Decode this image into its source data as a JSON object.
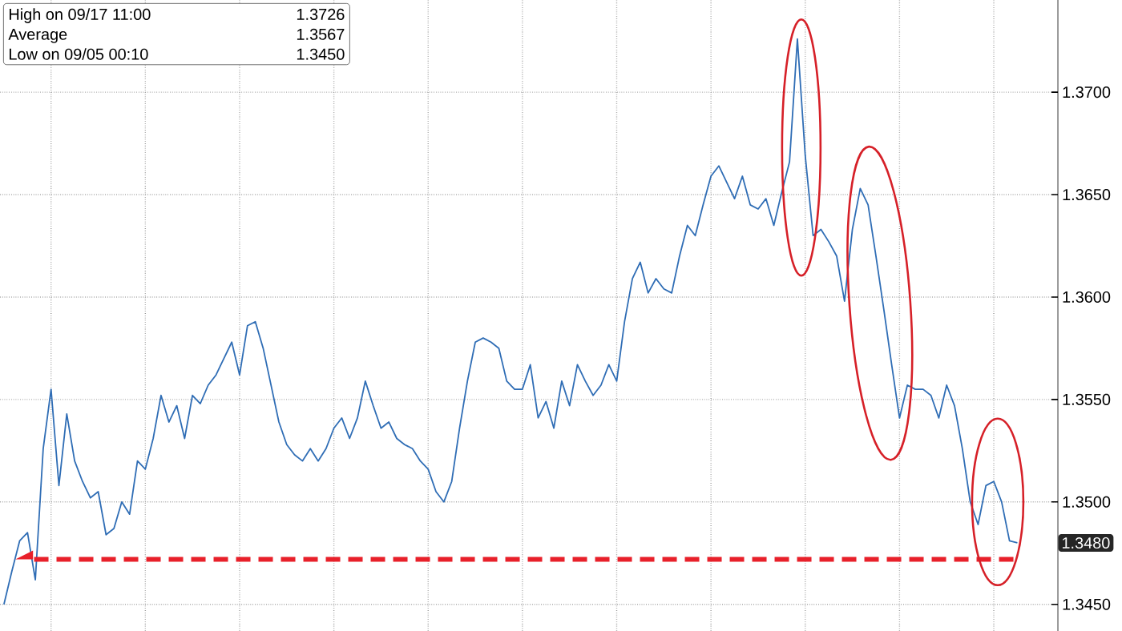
{
  "chart_data": {
    "type": "line",
    "categories": [
      null,
      null,
      null,
      null,
      null,
      null,
      null,
      null,
      null,
      null,
      null,
      null,
      null,
      null,
      null,
      null,
      null,
      null,
      null,
      null,
      null,
      null,
      null,
      null,
      null,
      null,
      null,
      null,
      null,
      null,
      null,
      null,
      null,
      null,
      null,
      null,
      null,
      null,
      null,
      null,
      null,
      null,
      null,
      null,
      null,
      null,
      null,
      null,
      null,
      null,
      null,
      null,
      null,
      null,
      null,
      null,
      null,
      null,
      null,
      null,
      null,
      null,
      null,
      null,
      null,
      null,
      null,
      null,
      null,
      null,
      null,
      null,
      null,
      null,
      null,
      null,
      null,
      null,
      null,
      null,
      null,
      null,
      null,
      null,
      null,
      null,
      null,
      null,
      null,
      null,
      null,
      null,
      null,
      null,
      null,
      null,
      null,
      null,
      null,
      null,
      null,
      null,
      null,
      null,
      null,
      null,
      null,
      null,
      null,
      null,
      null,
      null,
      null,
      null,
      null,
      null,
      null,
      null,
      null,
      null,
      null,
      null,
      null,
      null,
      null,
      null,
      null,
      null,
      null,
      null
    ],
    "series": [
      {
        "color": "#2f6db5",
        "values": [
          1.345,
          1.3466,
          1.3481,
          1.3485,
          1.3462,
          1.3526,
          1.3555,
          1.3508,
          1.3543,
          1.352,
          1.351,
          1.3502,
          1.3505,
          1.3484,
          1.3487,
          1.35,
          1.3494,
          1.352,
          1.3516,
          1.3531,
          1.3552,
          1.3539,
          1.3547,
          1.3531,
          1.3552,
          1.3548,
          1.3557,
          1.3562,
          1.357,
          1.3578,
          1.3562,
          1.3586,
          1.3588,
          1.3575,
          1.3557,
          1.3539,
          1.3528,
          1.3523,
          1.352,
          1.3526,
          1.352,
          1.3526,
          1.3536,
          1.3541,
          1.3531,
          1.3541,
          1.3559,
          1.3547,
          1.3536,
          1.3539,
          1.3531,
          1.3528,
          1.3526,
          1.352,
          1.3516,
          1.3505,
          1.35,
          1.351,
          1.3536,
          1.3559,
          1.3578,
          1.358,
          1.3578,
          1.3575,
          1.3559,
          1.3555,
          1.3555,
          1.3567,
          1.3541,
          1.3549,
          1.3536,
          1.3559,
          1.3547,
          1.3567,
          1.3559,
          1.3552,
          1.3557,
          1.3567,
          1.3559,
          1.3588,
          1.3609,
          1.3617,
          1.3602,
          1.3609,
          1.3604,
          1.3602,
          1.362,
          1.3635,
          1.363,
          1.3645,
          1.3659,
          1.3664,
          1.3656,
          1.3648,
          1.3659,
          1.3645,
          1.3643,
          1.3648,
          1.3635,
          1.3651,
          1.3666,
          1.3726,
          1.3669,
          1.363,
          1.3633,
          1.3627,
          1.362,
          1.3598,
          1.3633,
          1.3653,
          1.3645,
          1.362,
          1.3594,
          1.3567,
          1.3541,
          1.3557,
          1.3555,
          1.3555,
          1.3552,
          1.3541,
          1.3557,
          1.3547,
          1.3526,
          1.35,
          1.3489,
          1.3508,
          1.351,
          1.35,
          1.3481,
          1.348
        ]
      }
    ],
    "ylim": [
      1.3437,
      1.3745
    ],
    "yticks": [
      {
        "value": 1.345,
        "label": "1.3450"
      },
      {
        "value": 1.35,
        "label": "1.3500"
      },
      {
        "value": 1.355,
        "label": "1.3550"
      },
      {
        "value": 1.36,
        "label": "1.3600"
      },
      {
        "value": 1.365,
        "label": "1.3650"
      },
      {
        "value": 1.37,
        "label": "1.3700"
      }
    ],
    "grid": true,
    "ref_lines": [
      {
        "axis": "y",
        "value": 1.3472,
        "color": "#e8202a",
        "line_style": "dashed"
      }
    ],
    "tick_labels": "y",
    "annotations": [
      "High on 09/17 11:00",
      "1.3726",
      "Average",
      "1.3567",
      "Low on 09/05 00:10",
      "1.3450",
      "1.3480"
    ]
  }
}
